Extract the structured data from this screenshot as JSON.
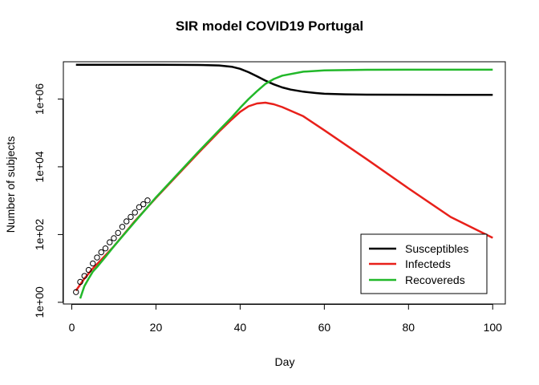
{
  "chart_data": {
    "type": "line",
    "title": "SIR model COVID19 Portugal",
    "xlabel": "Day",
    "ylabel": "Number of subjects",
    "xlim": [
      -2,
      103
    ],
    "ylim_log10": [
      -0.05,
      7.1
    ],
    "y_scale": "log",
    "x_ticks": [
      0,
      20,
      40,
      60,
      80,
      100
    ],
    "y_ticks": [
      {
        "value": 1,
        "label": "1e+00"
      },
      {
        "value": 100,
        "label": "1e+02"
      },
      {
        "value": 10000,
        "label": "1e+04"
      },
      {
        "value": 1000000,
        "label": "1e+06"
      }
    ],
    "legend_position": "bottom-right",
    "series": [
      {
        "name": "Susceptibles",
        "color": "#000000",
        "x": [
          1,
          10,
          20,
          26,
          30,
          35,
          38,
          40,
          42,
          44,
          46,
          48,
          50,
          52,
          55,
          58,
          60,
          65,
          70,
          80,
          90,
          100
        ],
        "y": [
          10280000,
          10280000,
          10270000,
          10200000,
          10100000,
          9800000,
          9000000,
          7800000,
          6200000,
          4700000,
          3500000,
          2700000,
          2200000,
          1900000,
          1650000,
          1500000,
          1430000,
          1380000,
          1350000,
          1340000,
          1335000,
          1330000
        ]
      },
      {
        "name": "Infecteds",
        "color": "#e8201a",
        "x": [
          1,
          3,
          5,
          7,
          10,
          15,
          20,
          25,
          30,
          35,
          38,
          40,
          42,
          44,
          46,
          48,
          50,
          55,
          60,
          70,
          80,
          90,
          100
        ],
        "y": [
          2.2,
          5,
          10,
          18,
          45,
          250,
          1200,
          5500,
          25000,
          110000,
          250000,
          420000,
          610000,
          740000,
          780000,
          700000,
          580000,
          310000,
          120000,
          17000,
          2300,
          330,
          80
        ]
      },
      {
        "name": "Recovereds",
        "color": "#22b82a",
        "x": [
          2,
          3,
          4,
          5,
          6,
          8,
          10,
          15,
          20,
          25,
          30,
          35,
          38,
          40,
          42,
          44,
          46,
          48,
          50,
          55,
          60,
          70,
          80,
          90,
          100
        ],
        "y": [
          1.3,
          3,
          5,
          8,
          11,
          22,
          45,
          240,
          1250,
          5800,
          27000,
          120000,
          290000,
          550000,
          1000000,
          1700000,
          2800000,
          3900000,
          4900000,
          6400000,
          7000000,
          7300000,
          7350000,
          7350000,
          7350000
        ]
      }
    ],
    "observed": {
      "color": "#000000",
      "x": [
        1,
        2,
        3,
        4,
        5,
        6,
        7,
        8,
        9,
        10,
        11,
        12,
        13,
        14,
        15,
        16,
        17,
        18
      ],
      "y": [
        2,
        4,
        6,
        9,
        14,
        21,
        30,
        39,
        59,
        78,
        112,
        169,
        245,
        331,
        448,
        642,
        785,
        1020
      ]
    }
  }
}
